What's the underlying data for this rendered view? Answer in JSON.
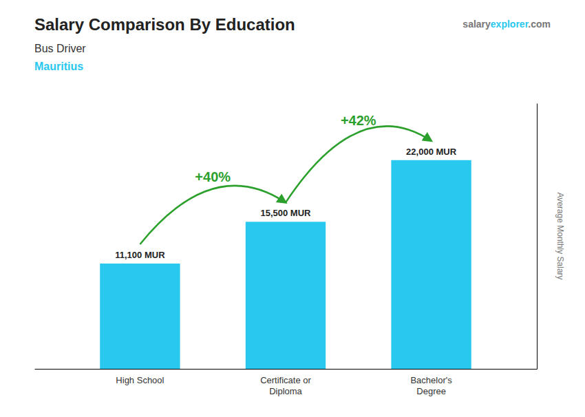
{
  "chart_data": {
    "type": "bar",
    "title": "Salary Comparison By Education",
    "subtitle": "Bus Driver",
    "y_label": "Average Monthly Salary",
    "annotations": [
      "+40%",
      "+42%",
      "Mauritius",
      "salary",
      "explorer",
      ".com"
    ],
    "categories": [
      "High School",
      "Certificate or\nDiploma",
      "Bachelor's\nDegree"
    ],
    "values": [
      11100,
      15500,
      22000
    ],
    "value_labels": [
      "11,100 MUR",
      "15,500 MUR",
      "22,000 MUR"
    ],
    "data_labels": true,
    "color": "#29C8EE",
    "ylim": [
      0,
      28000
    ],
    "tick_labels": "x",
    "grid": false
  }
}
